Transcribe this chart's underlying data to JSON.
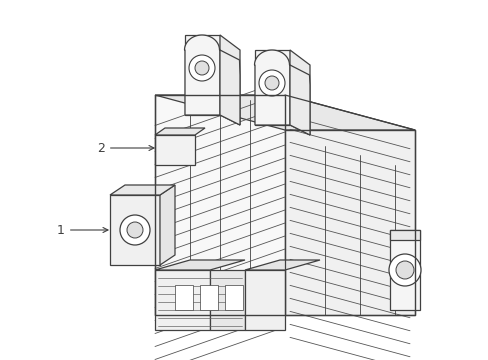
{
  "background_color": "#ffffff",
  "line_color": "#404040",
  "line_width": 0.9,
  "callout_1_label": "1",
  "callout_2_label": "2",
  "figsize": [
    4.89,
    3.6
  ],
  "dpi": 100
}
